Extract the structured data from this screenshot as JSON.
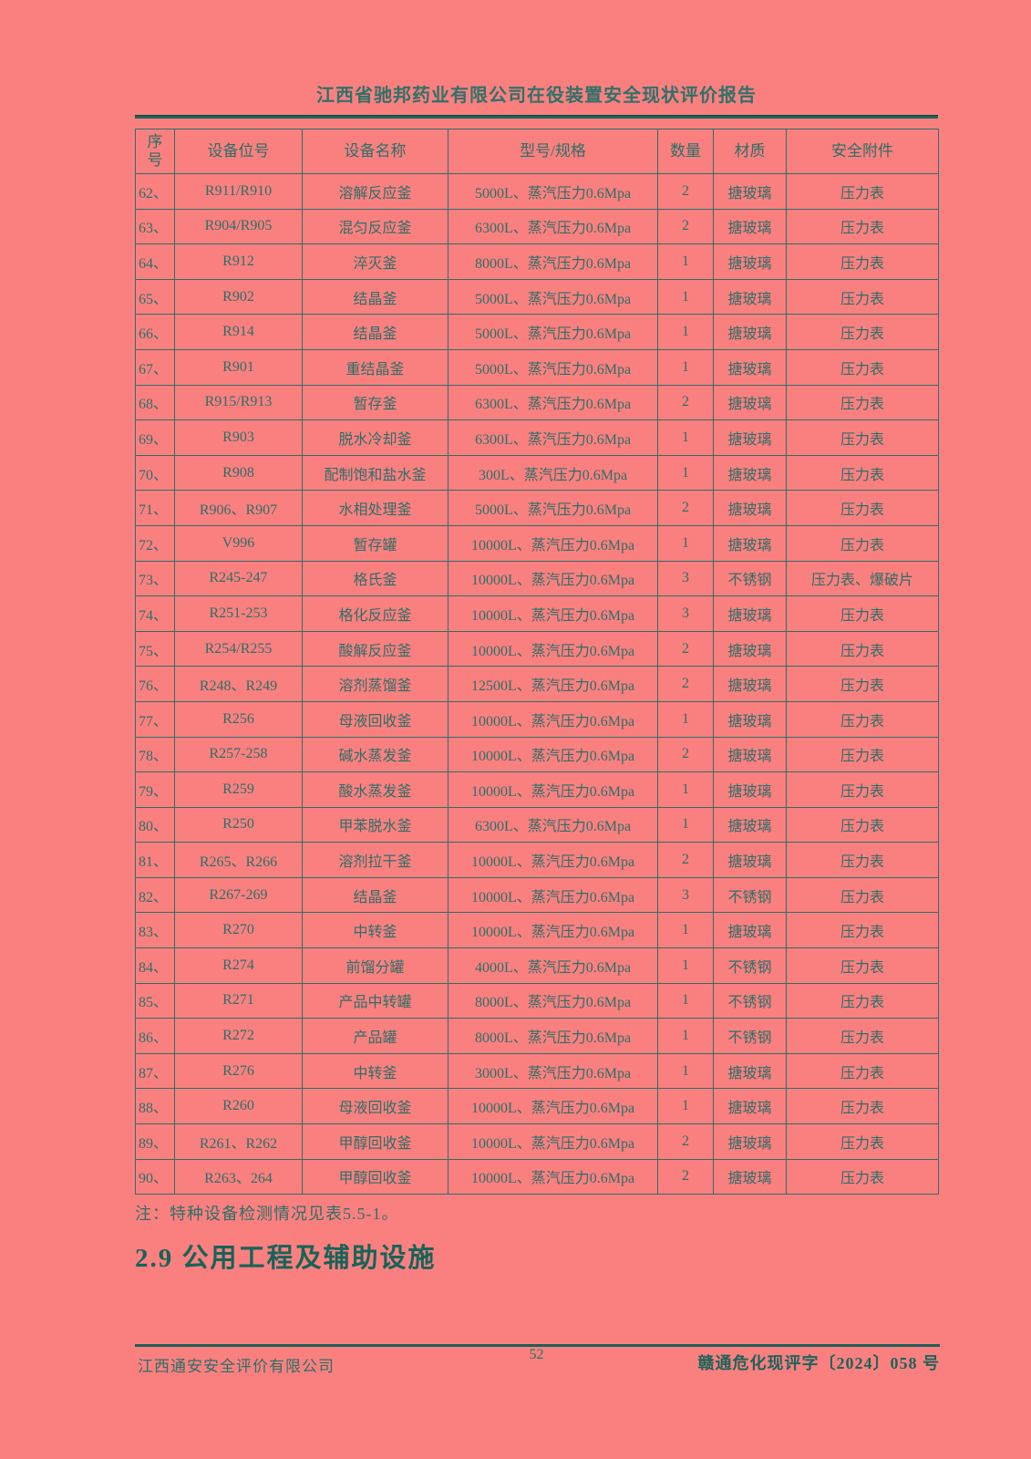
{
  "header": {
    "title": "江西省驰邦药业有限公司在役装置安全现状评价报告"
  },
  "table": {
    "headers": [
      "序号",
      "设备位号",
      "设备名称",
      "型号/规格",
      "数量",
      "材质",
      "安全附件"
    ],
    "rows": [
      [
        "62、",
        "R911/R910",
        "溶解反应釜",
        "5000L、蒸汽压力0.6Mpa",
        "2",
        "搪玻璃",
        "压力表"
      ],
      [
        "63、",
        "R904/R905",
        "混匀反应釜",
        "6300L、蒸汽压力0.6Mpa",
        "2",
        "搪玻璃",
        "压力表"
      ],
      [
        "64、",
        "R912",
        "淬灭釜",
        "8000L、蒸汽压力0.6Mpa",
        "1",
        "搪玻璃",
        "压力表"
      ],
      [
        "65、",
        "R902",
        "结晶釜",
        "5000L、蒸汽压力0.6Mpa",
        "1",
        "搪玻璃",
        "压力表"
      ],
      [
        "66、",
        "R914",
        "结晶釜",
        "5000L、蒸汽压力0.6Mpa",
        "1",
        "搪玻璃",
        "压力表"
      ],
      [
        "67、",
        "R901",
        "重结晶釜",
        "5000L、蒸汽压力0.6Mpa",
        "1",
        "搪玻璃",
        "压力表"
      ],
      [
        "68、",
        "R915/R913",
        "暂存釜",
        "6300L、蒸汽压力0.6Mpa",
        "2",
        "搪玻璃",
        "压力表"
      ],
      [
        "69、",
        "R903",
        "脱水冷却釜",
        "6300L、蒸汽压力0.6Mpa",
        "1",
        "搪玻璃",
        "压力表"
      ],
      [
        "70、",
        "R908",
        "配制饱和盐水釜",
        "300L、蒸汽压力0.6Mpa",
        "1",
        "搪玻璃",
        "压力表"
      ],
      [
        "71、",
        "R906、R907",
        "水相处理釜",
        "5000L、蒸汽压力0.6Mpa",
        "2",
        "搪玻璃",
        "压力表"
      ],
      [
        "72、",
        "V996",
        "暂存罐",
        "10000L、蒸汽压力0.6Mpa",
        "1",
        "搪玻璃",
        "压力表"
      ],
      [
        "73、",
        "R245-247",
        "格氏釜",
        "10000L、蒸汽压力0.6Mpa",
        "3",
        "不锈钢",
        "压力表、爆破片"
      ],
      [
        "74、",
        "R251-253",
        "格化反应釜",
        "10000L、蒸汽压力0.6Mpa",
        "3",
        "搪玻璃",
        "压力表"
      ],
      [
        "75、",
        "R254/R255",
        "酸解反应釜",
        "10000L、蒸汽压力0.6Mpa",
        "2",
        "搪玻璃",
        "压力表"
      ],
      [
        "76、",
        "R248、R249",
        "溶剂蒸馏釜",
        "12500L、蒸汽压力0.6Mpa",
        "2",
        "搪玻璃",
        "压力表"
      ],
      [
        "77、",
        "R256",
        "母液回收釜",
        "10000L、蒸汽压力0.6Mpa",
        "1",
        "搪玻璃",
        "压力表"
      ],
      [
        "78、",
        "R257-258",
        "碱水蒸发釜",
        "10000L、蒸汽压力0.6Mpa",
        "2",
        "搪玻璃",
        "压力表"
      ],
      [
        "79、",
        "R259",
        "酸水蒸发釜",
        "10000L、蒸汽压力0.6Mpa",
        "1",
        "搪玻璃",
        "压力表"
      ],
      [
        "80、",
        "R250",
        "甲苯脱水釜",
        "6300L、蒸汽压力0.6Mpa",
        "1",
        "搪玻璃",
        "压力表"
      ],
      [
        "81、",
        "R265、R266",
        "溶剂拉干釜",
        "10000L、蒸汽压力0.6Mpa",
        "2",
        "搪玻璃",
        "压力表"
      ],
      [
        "82、",
        "R267-269",
        "结晶釜",
        "10000L、蒸汽压力0.6Mpa",
        "3",
        "不锈钢",
        "压力表"
      ],
      [
        "83、",
        "R270",
        "中转釜",
        "10000L、蒸汽压力0.6Mpa",
        "1",
        "搪玻璃",
        "压力表"
      ],
      [
        "84、",
        "R274",
        "前馏分罐",
        "4000L、蒸汽压力0.6Mpa",
        "1",
        "不锈钢",
        "压力表"
      ],
      [
        "85、",
        "R271",
        "产品中转罐",
        "8000L、蒸汽压力0.6Mpa",
        "1",
        "不锈钢",
        "压力表"
      ],
      [
        "86、",
        "R272",
        "产品罐",
        "8000L、蒸汽压力0.6Mpa",
        "1",
        "不锈钢",
        "压力表"
      ],
      [
        "87、",
        "R276",
        "中转釜",
        "3000L、蒸汽压力0.6Mpa",
        "1",
        "搪玻璃",
        "压力表"
      ],
      [
        "88、",
        "R260",
        "母液回收釜",
        "10000L、蒸汽压力0.6Mpa",
        "1",
        "搪玻璃",
        "压力表"
      ],
      [
        "89、",
        "R261、R262",
        "甲醇回收釜",
        "10000L、蒸汽压力0.6Mpa",
        "2",
        "搪玻璃",
        "压力表"
      ],
      [
        "90、",
        "R263、264",
        "甲醇回收釜",
        "10000L、蒸汽压力0.6Mpa",
        "2",
        "搪玻璃",
        "压力表"
      ]
    ]
  },
  "note": "注：特种设备检测情况见表5.5-1。",
  "section_heading": "2.9 公用工程及辅助设施",
  "footer": {
    "company": "江西通安安全评价有限公司",
    "page_number": "52",
    "doc_number": "赣通危化现评字〔2024〕058 号"
  },
  "colors": {
    "background": "#fa8080",
    "text_teal": "#2c6f67",
    "heading_teal": "#176359",
    "rule_teal": "#1e655c"
  }
}
